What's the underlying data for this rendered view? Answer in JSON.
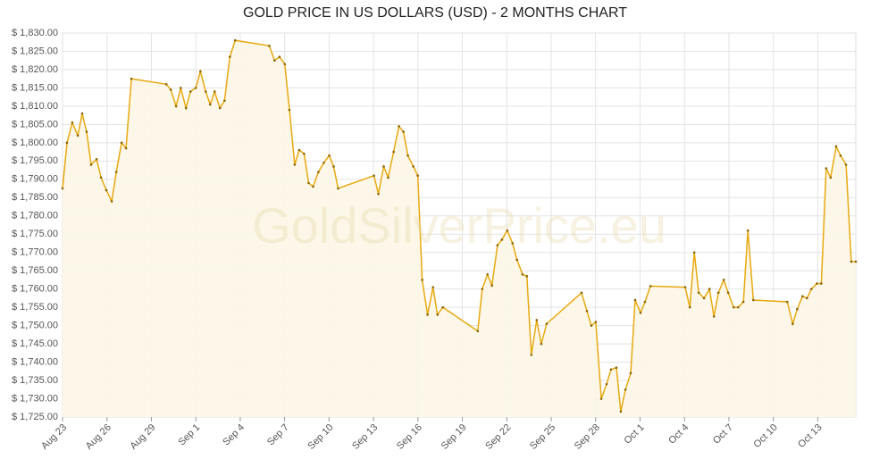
{
  "chart_data": {
    "type": "line",
    "title": "GOLD PRICE IN US DOLLARS (USD) - 2 MONTHS CHART",
    "watermark": "GoldSilverPrice.eu",
    "grid": true,
    "xlim": [
      0,
      53.57
    ],
    "xticks": [
      {
        "value": 0,
        "label": "Aug 23"
      },
      {
        "value": 3,
        "label": "Aug 26"
      },
      {
        "value": 6,
        "label": "Aug 29"
      },
      {
        "value": 9,
        "label": "Sep 1"
      },
      {
        "value": 12,
        "label": "Sep 4"
      },
      {
        "value": 15,
        "label": "Sep 7"
      },
      {
        "value": 18,
        "label": "Sep 10"
      },
      {
        "value": 21,
        "label": "Sep 13"
      },
      {
        "value": 24,
        "label": "Sep 16"
      },
      {
        "value": 27,
        "label": "Sep 19"
      },
      {
        "value": 30,
        "label": "Sep 22"
      },
      {
        "value": 33,
        "label": "Sep 25"
      },
      {
        "value": 36,
        "label": "Sep 28"
      },
      {
        "value": 39,
        "label": "Oct 1"
      },
      {
        "value": 42,
        "label": "Oct 4"
      },
      {
        "value": 45,
        "label": "Oct 7"
      },
      {
        "value": 48,
        "label": "Oct 10"
      },
      {
        "value": 51,
        "label": "Oct 13"
      }
    ],
    "ylim": [
      1725,
      1830
    ],
    "yticks": [
      {
        "value": 1725,
        "label": "$ 1,725.00"
      },
      {
        "value": 1730,
        "label": "$ 1,730.00"
      },
      {
        "value": 1735,
        "label": "$ 1,735.00"
      },
      {
        "value": 1740,
        "label": "$ 1,740.00"
      },
      {
        "value": 1745,
        "label": "$ 1,745.00"
      },
      {
        "value": 1750,
        "label": "$ 1,750.00"
      },
      {
        "value": 1755,
        "label": "$ 1,755.00"
      },
      {
        "value": 1760,
        "label": "$ 1,760.00"
      },
      {
        "value": 1765,
        "label": "$ 1,765.00"
      },
      {
        "value": 1770,
        "label": "$ 1,770.00"
      },
      {
        "value": 1775,
        "label": "$ 1,775.00"
      },
      {
        "value": 1780,
        "label": "$ 1,780.00"
      },
      {
        "value": 1785,
        "label": "$ 1,785.00"
      },
      {
        "value": 1790,
        "label": "$ 1,790.00"
      },
      {
        "value": 1795,
        "label": "$ 1,795.00"
      },
      {
        "value": 1800,
        "label": "$ 1,800.00"
      },
      {
        "value": 1805,
        "label": "$ 1,805.00"
      },
      {
        "value": 1810,
        "label": "$ 1,810.00"
      },
      {
        "value": 1815,
        "label": "$ 1,815.00"
      },
      {
        "value": 1820,
        "label": "$ 1,820.00"
      },
      {
        "value": 1825,
        "label": "$ 1,825.00"
      },
      {
        "value": 1830,
        "label": "$ 1,830.00"
      }
    ],
    "x": [
      0,
      0.3,
      0.66,
      1.03,
      1.33,
      1.63,
      1.93,
      2.3,
      2.6,
      2.96,
      3.32,
      3.63,
      3.99,
      4.29,
      4.65,
      7.01,
      7.31,
      7.67,
      7.98,
      8.34,
      8.64,
      9.0,
      9.31,
      9.67,
      9.97,
      10.27,
      10.63,
      10.94,
      11.3,
      11.66,
      13.96,
      14.32,
      14.65,
      15.01,
      15.32,
      15.68,
      15.98,
      16.31,
      16.62,
      16.92,
      17.28,
      17.64,
      18.01,
      18.31,
      18.61,
      21.03,
      21.33,
      21.69,
      21.99,
      22.36,
      22.72,
      23.02,
      23.32,
      23.69,
      23.99,
      24.29,
      24.65,
      25.02,
      25.32,
      25.68,
      28.04,
      28.34,
      28.7,
      29.0,
      29.37,
      29.67,
      30.03,
      30.39,
      30.69,
      31.06,
      31.36,
      31.66,
      32.02,
      32.33,
      32.69,
      35.05,
      35.41,
      35.71,
      36.01,
      36.38,
      36.74,
      37.04,
      37.4,
      37.7,
      38.01,
      38.37,
      38.67,
      39.03,
      39.33,
      39.7,
      42.05,
      42.36,
      42.66,
      42.96,
      43.32,
      43.69,
      43.99,
      44.29,
      44.65,
      44.95,
      45.32,
      45.62,
      45.98,
      46.28,
      46.65,
      48.94,
      49.31,
      49.61,
      49.97,
      50.27,
      50.57,
      50.94,
      51.24,
      51.57,
      51.87,
      52.24,
      52.54,
      52.91,
      53.26,
      53.57
    ],
    "series": [
      {
        "color": "#e8a910",
        "fill": "#fcf6e6",
        "values": [
          1787.5,
          1800,
          1805.5,
          1802,
          1808,
          1803,
          1794,
          1795.5,
          1790.5,
          1787,
          1784,
          1792,
          1800,
          1798.5,
          1817.5,
          1816,
          1814.5,
          1810,
          1815,
          1809.5,
          1814,
          1815,
          1819.5,
          1814,
          1810.5,
          1814,
          1809.5,
          1811.5,
          1823.5,
          1828,
          1826.5,
          1822.5,
          1823.5,
          1821.5,
          1809,
          1794,
          1798,
          1797,
          1789,
          1788,
          1792,
          1794.5,
          1796.5,
          1793.5,
          1787.5,
          1791,
          1786,
          1793.5,
          1790.5,
          1797.5,
          1804.5,
          1803,
          1796.5,
          1793.5,
          1791,
          1762.5,
          1753,
          1760.5,
          1753,
          1755,
          1748.5,
          1760,
          1764,
          1761,
          1772,
          1773.5,
          1776,
          1772.5,
          1768,
          1764,
          1763.5,
          1742,
          1751.5,
          1745,
          1750.5,
          1759,
          1754,
          1750,
          1751,
          1730,
          1734,
          1738,
          1738.5,
          1726.5,
          1732.5,
          1737,
          1757,
          1753.5,
          1756.5,
          1760.8,
          1760.5,
          1755,
          1770,
          1759,
          1757.5,
          1760,
          1752.5,
          1759,
          1762.5,
          1759,
          1755,
          1755,
          1756.5,
          1776,
          1757,
          1756.5,
          1750.5,
          1754.5,
          1758,
          1757.5,
          1760,
          1761.5,
          1761.5,
          1793,
          1790.5,
          1799,
          1796.5,
          1794,
          1767.5,
          1767.5
        ]
      }
    ]
  }
}
